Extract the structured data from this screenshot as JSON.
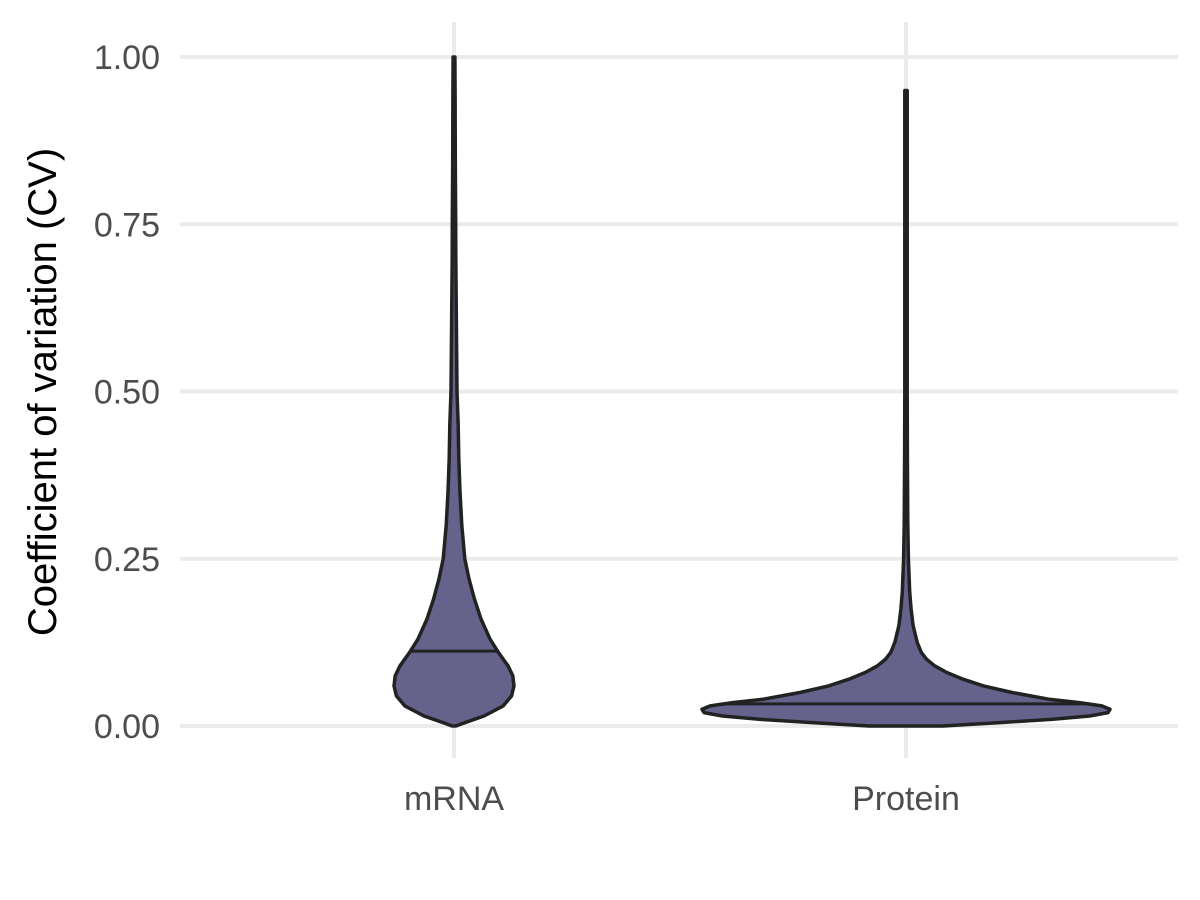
{
  "chart_data": {
    "type": "violin",
    "title": "",
    "xlabel": "",
    "ylabel": "Coefficient of variation (CV)",
    "categories": [
      "mRNA",
      "Protein"
    ],
    "ylim": [
      -0.04,
      1.05
    ],
    "yticks": [
      0,
      0.25,
      0.5,
      0.75,
      1.0
    ],
    "ytick_labels": [
      "0.00",
      "0.25",
      "0.50",
      "0.75",
      "1.00"
    ],
    "grid": true,
    "fill_color": "#65638b",
    "outline_color": "#222222",
    "series": [
      {
        "category": "mRNA",
        "median": 0.112,
        "min": 0.0,
        "max": 1.0,
        "density_profile": [
          [
            0.0,
            0.03
          ],
          [
            0.005,
            0.18
          ],
          [
            0.015,
            0.5
          ],
          [
            0.03,
            0.82
          ],
          [
            0.045,
            0.96
          ],
          [
            0.06,
            1.0
          ],
          [
            0.075,
            0.98
          ],
          [
            0.09,
            0.9
          ],
          [
            0.11,
            0.74
          ],
          [
            0.13,
            0.6
          ],
          [
            0.16,
            0.45
          ],
          [
            0.19,
            0.34
          ],
          [
            0.22,
            0.25
          ],
          [
            0.25,
            0.18
          ],
          [
            0.3,
            0.13
          ],
          [
            0.35,
            0.1
          ],
          [
            0.4,
            0.08
          ],
          [
            0.45,
            0.07
          ],
          [
            0.5,
            0.05
          ],
          [
            0.55,
            0.045
          ],
          [
            0.6,
            0.04
          ],
          [
            0.65,
            0.035
          ],
          [
            0.7,
            0.03
          ],
          [
            0.75,
            0.028
          ],
          [
            0.8,
            0.025
          ],
          [
            0.85,
            0.022
          ],
          [
            0.9,
            0.02
          ],
          [
            0.95,
            0.018
          ],
          [
            1.0,
            0.015
          ]
        ]
      },
      {
        "category": "Protein",
        "median": 0.033,
        "min": 0.0,
        "max": 0.95,
        "density_profile": [
          [
            0.0,
            0.18
          ],
          [
            0.005,
            0.45
          ],
          [
            0.01,
            0.72
          ],
          [
            0.015,
            0.9
          ],
          [
            0.02,
            0.99
          ],
          [
            0.025,
            1.0
          ],
          [
            0.03,
            0.96
          ],
          [
            0.035,
            0.85
          ],
          [
            0.04,
            0.7
          ],
          [
            0.05,
            0.52
          ],
          [
            0.06,
            0.38
          ],
          [
            0.07,
            0.28
          ],
          [
            0.08,
            0.2
          ],
          [
            0.09,
            0.14
          ],
          [
            0.1,
            0.1
          ],
          [
            0.11,
            0.075
          ],
          [
            0.125,
            0.055
          ],
          [
            0.15,
            0.035
          ],
          [
            0.175,
            0.025
          ],
          [
            0.2,
            0.018
          ],
          [
            0.25,
            0.012
          ],
          [
            0.3,
            0.009
          ],
          [
            0.4,
            0.007
          ],
          [
            0.5,
            0.006
          ],
          [
            0.7,
            0.006
          ],
          [
            0.95,
            0.006
          ]
        ]
      }
    ]
  }
}
